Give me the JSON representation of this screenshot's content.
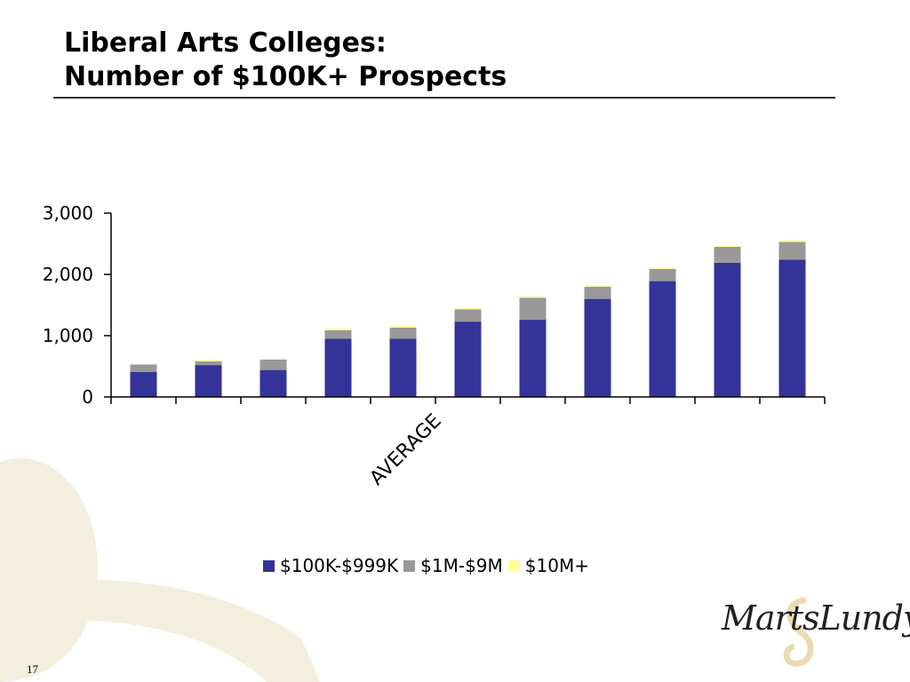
{
  "slide": {
    "title_line1": "Liberal Arts Colleges:",
    "title_line2": "Number of $100K+ Prospects",
    "page_number": "17",
    "logo_text": "MartsLundy"
  },
  "colors": {
    "series_100k": "#333399",
    "series_1m": "#999999",
    "series_10m": "#ffff99",
    "background_swirl": "#f3efdf",
    "logo_ampersand": "#e8dcb0"
  },
  "chart_data": {
    "type": "bar",
    "stacked": true,
    "categories": [
      "",
      "",
      "",
      "",
      "AVERAGE",
      "",
      "",
      "",
      "",
      "",
      ""
    ],
    "series": [
      {
        "name": "$100K-$999K",
        "values": [
          410,
          520,
          440,
          950,
          950,
          1230,
          1260,
          1600,
          1890,
          2190,
          2240
        ]
      },
      {
        "name": "$1M-$9M",
        "values": [
          120,
          60,
          170,
          140,
          180,
          200,
          360,
          200,
          200,
          260,
          290
        ]
      },
      {
        "name": "$10M+",
        "values": [
          0,
          20,
          0,
          30,
          30,
          20,
          20,
          20,
          20,
          20,
          30
        ]
      }
    ],
    "yticks": [
      "0",
      "1,000",
      "2,000",
      "3,000"
    ],
    "ylim": [
      0,
      3000
    ],
    "grid": false,
    "legend_position": "bottom"
  }
}
